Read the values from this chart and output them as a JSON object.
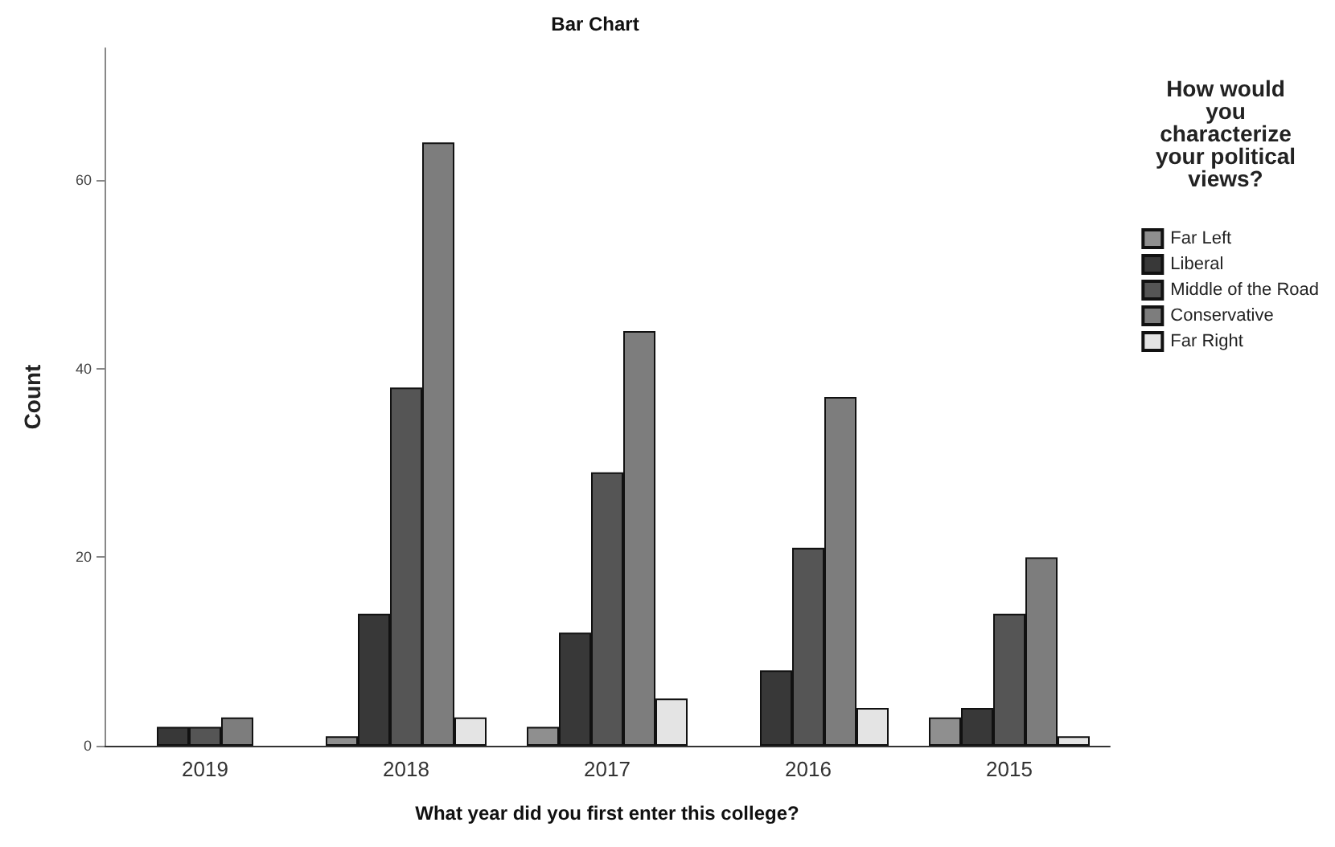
{
  "chart_data": {
    "type": "bar",
    "title": "Bar Chart",
    "xlabel": "What year did you first enter this college?",
    "ylabel": "Count",
    "legend_title": "How would\nyou\ncharacterize\nyour political\nviews?",
    "categories": [
      "2019",
      "2018",
      "2017",
      "2016",
      "2015"
    ],
    "series": [
      {
        "name": "Far Left",
        "color": "#8f8f8f",
        "values": [
          0,
          1,
          2,
          0,
          3
        ]
      },
      {
        "name": "Liberal",
        "color": "#383838",
        "values": [
          2,
          14,
          12,
          8,
          4
        ]
      },
      {
        "name": "Middle of the Road",
        "color": "#555555",
        "values": [
          2,
          38,
          29,
          21,
          14
        ]
      },
      {
        "name": "Conservative",
        "color": "#7d7d7d",
        "values": [
          3,
          64,
          44,
          37,
          20
        ]
      },
      {
        "name": "Far Right",
        "color": "#e4e4e4",
        "values": [
          0,
          3,
          5,
          4,
          1
        ]
      }
    ],
    "ylim": [
      0,
      74
    ],
    "yticks": [
      0,
      20,
      40,
      60
    ],
    "grid": false,
    "legend": "right"
  }
}
